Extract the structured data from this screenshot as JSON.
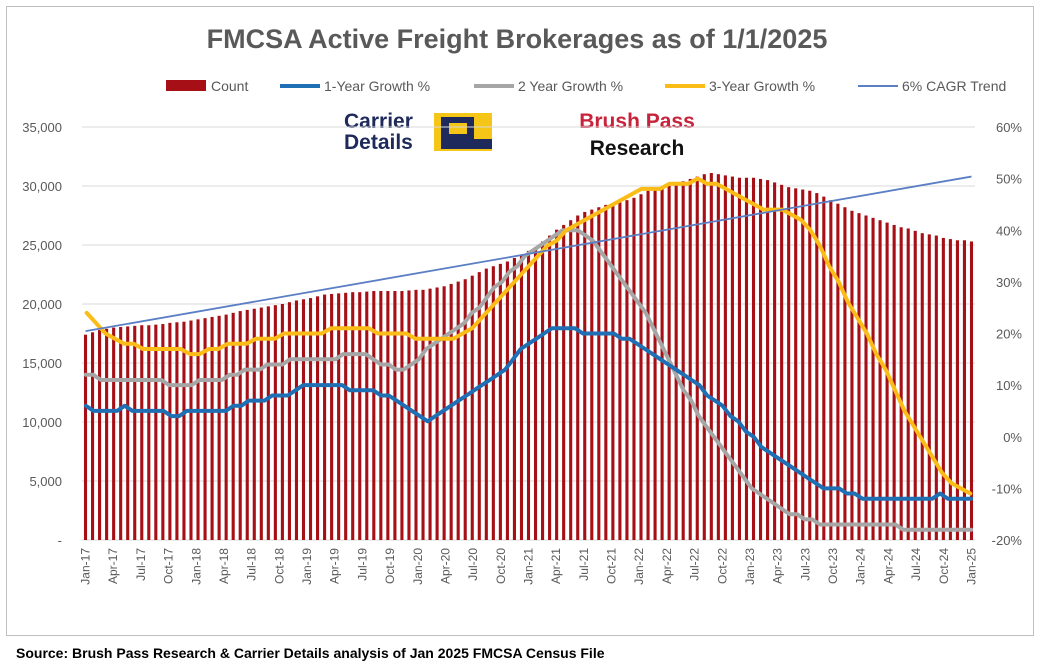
{
  "chart_data": {
    "type": "bar+line",
    "title": "FMCSA Active Freight Brokerages as of 1/1/2025",
    "source": "Source: Brush Pass Research & Carrier Details analysis of Jan 2025 FMCSA Census File",
    "logos": {
      "carrier_line1": "Carrier",
      "carrier_line2": "Details",
      "brush_line1": "Brush Pass",
      "brush_line2": "Research"
    },
    "legend": [
      "Count",
      "1-Year Growth %",
      "2 Year Growth %",
      "3-Year Growth %",
      "6% CAGR Trend"
    ],
    "colors": {
      "count": "#a50f15",
      "growth1": "#1f6fb4",
      "growth2": "#a6a6a6",
      "growth3": "#fcbc18",
      "trend": "#5b7fc4",
      "text": "#595959",
      "grid": "#d9d9d9"
    },
    "y_left": {
      "min": 0,
      "max": 35000,
      "ticks": [
        "-",
        "5,000",
        "10,000",
        "15,000",
        "20,000",
        "25,000",
        "30,000",
        "35,000"
      ]
    },
    "y_right": {
      "min": -20,
      "max": 60,
      "ticks": [
        "-20%",
        "-10%",
        "0%",
        "10%",
        "20%",
        "30%",
        "40%",
        "50%",
        "60%"
      ]
    },
    "x_labels": [
      "Jan-17",
      "Apr-17",
      "Jul-17",
      "Oct-17",
      "Jan-18",
      "Apr-18",
      "Jul-18",
      "Oct-18",
      "Jan-19",
      "Apr-19",
      "Jul-19",
      "Oct-19",
      "Jan-20",
      "Apr-20",
      "Jul-20",
      "Oct-20",
      "Jan-21",
      "Apr-21",
      "Jul-21",
      "Oct-21",
      "Jan-22",
      "Apr-22",
      "Jul-22",
      "Oct-22",
      "Jan-23",
      "Apr-23",
      "Jul-23",
      "Oct-23",
      "Jan-24",
      "Apr-24",
      "Jul-24",
      "Oct-24",
      "Jan-25"
    ],
    "count": [
      17400,
      17600,
      17800,
      17900,
      18000,
      18050,
      18100,
      18150,
      18200,
      18200,
      18250,
      18300,
      18400,
      18450,
      18500,
      18600,
      18700,
      18800,
      18900,
      19000,
      19100,
      19250,
      19400,
      19500,
      19600,
      19700,
      19800,
      19900,
      20000,
      20150,
      20300,
      20400,
      20500,
      20650,
      20800,
      20850,
      20900,
      20950,
      21000,
      21000,
      21050,
      21100,
      21100,
      21100,
      21100,
      21100,
      21150,
      21200,
      21200,
      21300,
      21400,
      21500,
      21700,
      21900,
      22100,
      22400,
      22700,
      23000,
      23200,
      23400,
      23600,
      23900,
      24200,
      24500,
      24800,
      25300,
      25800,
      26300,
      26700,
      27100,
      27500,
      27800,
      28000,
      28200,
      28400,
      28500,
      28600,
      28800,
      29000,
      29300,
      29600,
      29800,
      29900,
      30000,
      30200,
      30400,
      30600,
      30800,
      31000,
      31100,
      31000,
      30900,
      30800,
      30700,
      30700,
      30700,
      30600,
      30500,
      30300,
      30100,
      29900,
      29800,
      29700,
      29600,
      29400,
      29100,
      28800,
      28500,
      28200,
      27900,
      27700,
      27500,
      27300,
      27100,
      26900,
      26700,
      26500,
      26400,
      26200,
      26000,
      25900,
      25800,
      25600,
      25500,
      25400,
      25400,
      25300
    ],
    "growth_1yr_pct": [
      6,
      5,
      5,
      5,
      5,
      6,
      5,
      5,
      5,
      5,
      5,
      4,
      4,
      5,
      5,
      5,
      5,
      5,
      5,
      6,
      6,
      7,
      7,
      7,
      8,
      8,
      8,
      9,
      10,
      10,
      10,
      10,
      10,
      10,
      9,
      9,
      9,
      9,
      8,
      8,
      7,
      6,
      5,
      4,
      3,
      4,
      5,
      6,
      7,
      8,
      9,
      10,
      11,
      12,
      13,
      15,
      17,
      18,
      19,
      20,
      21,
      21,
      21,
      21,
      20,
      20,
      20,
      20,
      20,
      19,
      19,
      18,
      17,
      16,
      15,
      14,
      13,
      12,
      11,
      10,
      8,
      7,
      6,
      4,
      3,
      1,
      0,
      -2,
      -3,
      -4,
      -5,
      -6,
      -7,
      -8,
      -9,
      -10,
      -10,
      -10,
      -11,
      -11,
      -12,
      -12,
      -12,
      -12,
      -12,
      -12,
      -12,
      -12,
      -12,
      -12,
      -11,
      -12,
      -12,
      -12,
      -12
    ],
    "growth_2yr_pct": [
      12,
      12,
      11,
      11,
      11,
      11,
      11,
      11,
      11,
      11,
      11,
      10,
      10,
      10,
      10,
      11,
      11,
      11,
      11,
      12,
      12,
      13,
      13,
      13,
      14,
      14,
      14,
      15,
      15,
      15,
      15,
      15,
      15,
      15,
      16,
      16,
      16,
      16,
      15,
      14,
      14,
      13,
      13,
      14,
      15,
      17,
      18,
      19,
      20,
      21,
      22,
      24,
      25,
      27,
      29,
      30,
      32,
      33,
      35,
      36,
      37,
      38,
      39,
      40,
      40,
      40,
      39,
      38,
      36,
      34,
      32,
      30,
      28,
      26,
      24,
      21,
      18,
      15,
      12,
      9,
      7,
      4,
      2,
      0,
      -2,
      -4,
      -6,
      -8,
      -10,
      -11,
      -12,
      -13,
      -14,
      -15,
      -15,
      -16,
      -16,
      -17,
      -17,
      -17,
      -17,
      -17,
      -17,
      -17,
      -17,
      -17,
      -17,
      -17,
      -18,
      -18,
      -18,
      -18,
      -18,
      -18,
      -18,
      -18,
      -18,
      -18
    ],
    "growth_3yr_pct": [
      24,
      22,
      20,
      19,
      18,
      18,
      17,
      17,
      17,
      17,
      17,
      16,
      16,
      17,
      17,
      18,
      18,
      18,
      19,
      19,
      19,
      20,
      20,
      20,
      20,
      20,
      21,
      21,
      21,
      21,
      21,
      20,
      20,
      20,
      20,
      19,
      19,
      19,
      19,
      19,
      20,
      21,
      23,
      25,
      27,
      29,
      31,
      33,
      35,
      37,
      38,
      40,
      41,
      42,
      43,
      44,
      45,
      46,
      47,
      48,
      48,
      48,
      49,
      49,
      49,
      50,
      49,
      49,
      48,
      47,
      46,
      45,
      44,
      44,
      44,
      43,
      42,
      40,
      37,
      33,
      30,
      26,
      23,
      20,
      16,
      13,
      9,
      5,
      2,
      -1,
      -4,
      -7,
      -9,
      -10,
      -11
    ],
    "trend": {
      "start": 17700,
      "end": 30800
    }
  }
}
